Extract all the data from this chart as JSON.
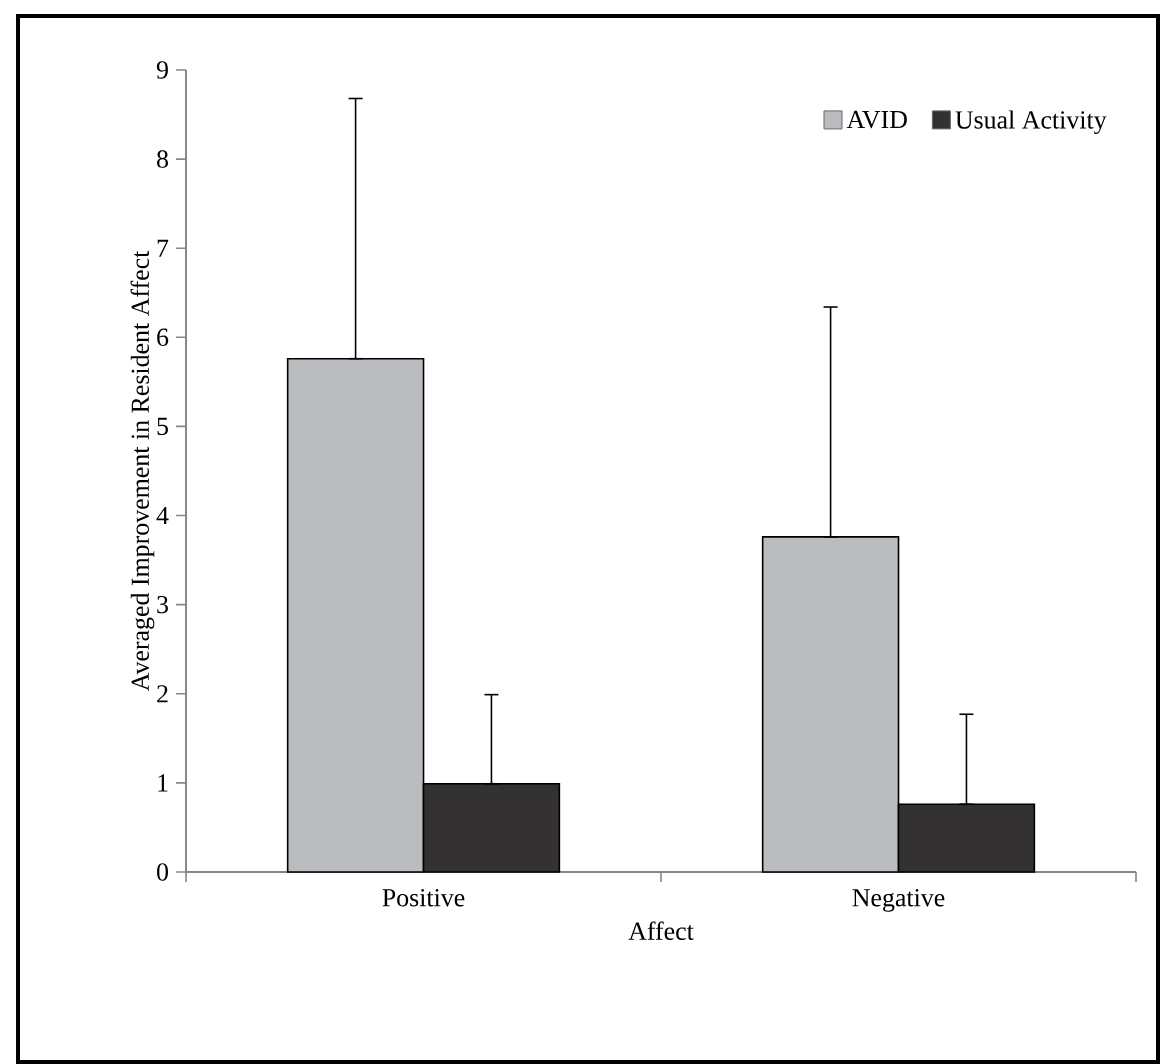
{
  "chart_data": {
    "type": "bar",
    "xlabel": "Affect",
    "ylabel": "Averaged Improvement in Resident Affect",
    "categories": [
      "Positive",
      "Negative"
    ],
    "series": [
      {
        "name": "AVID",
        "color": "#bbbcc0",
        "values": [
          5.76,
          3.76
        ],
        "errors": [
          [
            5.76,
            8.68
          ],
          [
            3.76,
            6.34
          ]
        ]
      },
      {
        "name": "Usual Activity",
        "color": "#333132",
        "values": [
          0.99,
          0.76
        ],
        "errors": [
          [
            0.99,
            1.99
          ],
          [
            0.76,
            1.77
          ]
        ]
      }
    ],
    "ylim": [
      0,
      9
    ],
    "yticks": [
      0,
      1,
      2,
      3,
      4,
      5,
      6,
      7,
      8,
      9
    ],
    "legend": "top right",
    "grid": false
  }
}
